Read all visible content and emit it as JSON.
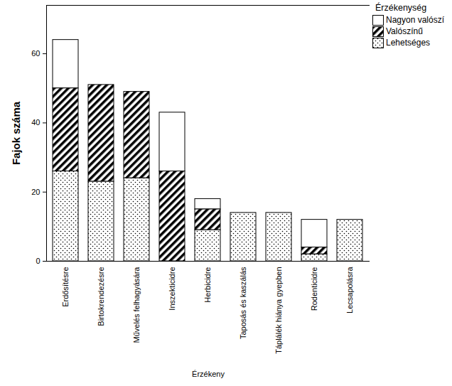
{
  "chart_data": {
    "type": "bar",
    "stacked": true,
    "xlabel": "Érzékeny",
    "ylabel": "Fajok száma",
    "categories": [
      "Erdősítésre",
      "Birtokrendezésre",
      "Művelés felhagyására",
      "Inszekticidre",
      "Herbicidre",
      "Taposás és kaszálás",
      "Táplálék hiánya gyepben",
      "Rodenticidre",
      "Lecsapolásra"
    ],
    "series": [
      {
        "name": "Nagyon valószí",
        "color": "#ffffff",
        "values": [
          14,
          0,
          0,
          17,
          3,
          0,
          0,
          8,
          0
        ]
      },
      {
        "name": "Valószínű",
        "color": "#000000",
        "values": [
          24,
          28,
          25,
          26,
          6,
          0,
          0,
          2,
          0
        ]
      },
      {
        "name": "Lehetséges",
        "color": "#000000",
        "values": [
          26,
          23,
          24,
          0,
          9,
          14,
          14,
          2,
          12
        ]
      }
    ],
    "legend_title": "Érzékenység",
    "legend": "top-right",
    "ylim": [
      0,
      74
    ],
    "yticks": [
      0,
      20,
      40,
      60
    ],
    "grid": false
  }
}
